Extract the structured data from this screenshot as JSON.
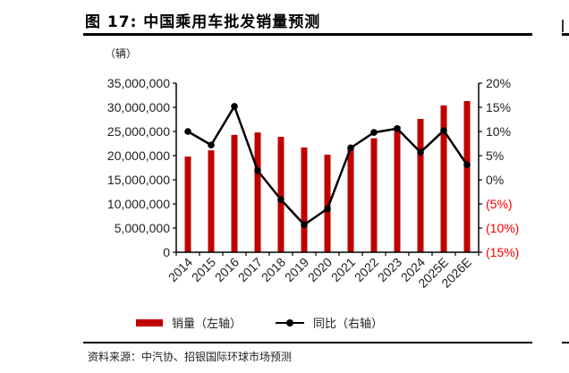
{
  "figure": {
    "title": "图 17: 中国乘用车批发销量预测",
    "unit_label": "（辆）",
    "source": "资料来源：中汽协、招银国际环球市场预测"
  },
  "legend": {
    "bar_label": "销量（左轴）",
    "line_label": "同比（右轴）"
  },
  "colors": {
    "bar": "#c00000",
    "line": "#000000",
    "negative_tick": "#ff0000"
  },
  "chart_data": {
    "type": "bar+line",
    "title": "图 17: 中国乘用车批发销量预测",
    "xlabel": "",
    "ylabel": "（辆）",
    "categories": [
      "2014",
      "2015",
      "2016",
      "2017",
      "2018",
      "2019",
      "2020",
      "2021",
      "2022",
      "2023",
      "2024",
      "2025E",
      "2026E"
    ],
    "series": [
      {
        "name": "销量（左轴）",
        "type": "bar",
        "axis": "left",
        "values": [
          19800000,
          21100000,
          24300000,
          24800000,
          23900000,
          21700000,
          20200000,
          21500000,
          23600000,
          26100000,
          27600000,
          30400000,
          31300000
        ]
      },
      {
        "name": "同比（右轴）",
        "type": "line",
        "axis": "right",
        "unit": "%",
        "values": [
          10.0,
          7.2,
          15.2,
          1.9,
          -4.1,
          -9.3,
          -6.0,
          6.6,
          9.8,
          10.6,
          5.7,
          10.2,
          3.1
        ]
      }
    ],
    "left_axis": {
      "ylim": [
        0,
        35000000
      ],
      "ticks": [
        "0",
        "5,000,000",
        "10,000,000",
        "15,000,000",
        "20,000,000",
        "25,000,000",
        "30,000,000",
        "35,000,000"
      ]
    },
    "right_axis": {
      "ylim": [
        -15,
        20
      ],
      "ticks": [
        "(15%)",
        "(10%)",
        "(5%)",
        "0%",
        "5%",
        "10%",
        "15%",
        "20%"
      ]
    },
    "grid": false,
    "legend_position": "bottom"
  }
}
